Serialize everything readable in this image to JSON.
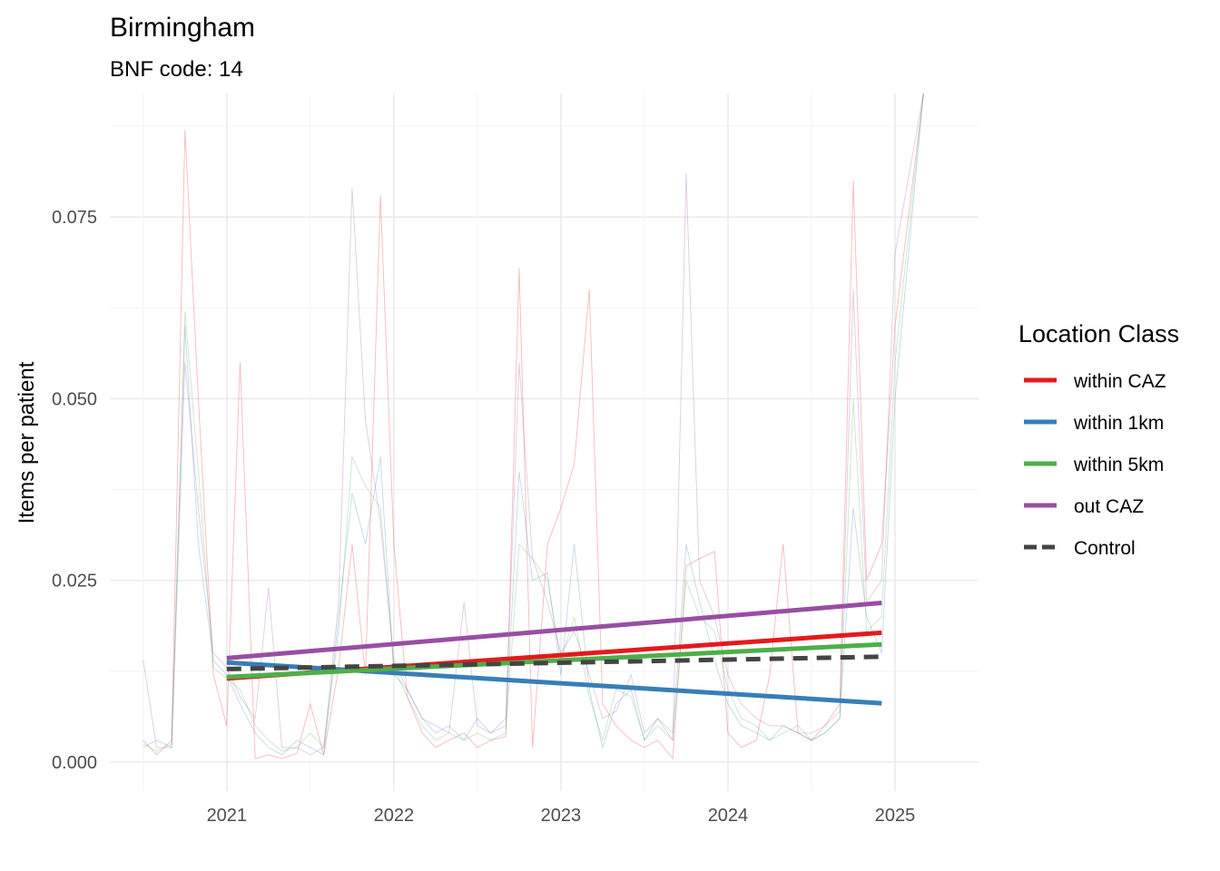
{
  "chart_data": {
    "type": "line",
    "title": "Birmingham",
    "subtitle": "BNF code: 14",
    "xlabel": "",
    "ylabel": "Items per patient",
    "xlim": [
      2020.3,
      2025.5
    ],
    "ylim": [
      -0.004,
      0.092
    ],
    "x_ticks": [
      2021,
      2022,
      2023,
      2024,
      2025
    ],
    "x_tick_labels": [
      "2021",
      "2022",
      "2023",
      "2024",
      "2025"
    ],
    "y_ticks": [
      0.0,
      0.025,
      0.05,
      0.075
    ],
    "y_tick_labels": [
      "0.000",
      "0.025",
      "0.050",
      "0.075"
    ],
    "grid": true,
    "legend": {
      "title": "Location Class",
      "placement": "right",
      "entries": [
        {
          "label": "within CAZ",
          "color": "#E41A1C",
          "dashed": false
        },
        {
          "label": "within 1km",
          "color": "#377EB8",
          "dashed": false
        },
        {
          "label": "within 5km",
          "color": "#4DAF4A",
          "dashed": false
        },
        {
          "label": "out CAZ",
          "color": "#984EA3",
          "dashed": false
        },
        {
          "label": "Control",
          "color": "#444444",
          "dashed": true
        }
      ]
    },
    "trend_lines": [
      {
        "name": "within CAZ",
        "color": "#E41A1C",
        "x": [
          2021.0,
          2024.92
        ],
        "y": [
          0.0115,
          0.0178
        ]
      },
      {
        "name": "within 1km",
        "color": "#377EB8",
        "x": [
          2021.0,
          2024.92
        ],
        "y": [
          0.0137,
          0.0081
        ]
      },
      {
        "name": "within 5km",
        "color": "#4DAF4A",
        "x": [
          2021.0,
          2024.92
        ],
        "y": [
          0.0117,
          0.0162
        ]
      },
      {
        "name": "out CAZ",
        "color": "#984EA3",
        "x": [
          2021.0,
          2024.92
        ],
        "y": [
          0.0143,
          0.0219
        ]
      },
      {
        "name": "Control",
        "color": "#444444",
        "dashed": true,
        "x": [
          2021.0,
          2024.92
        ],
        "y": [
          0.0128,
          0.0145
        ]
      }
    ],
    "raw_series": [
      {
        "name": "within CAZ",
        "color": "#E41A1C",
        "x": [
          2020.5,
          2020.58,
          2020.67,
          2020.75,
          2020.83,
          2020.92,
          2021.0,
          2021.08,
          2021.17,
          2021.25,
          2021.33,
          2021.42,
          2021.5,
          2021.58,
          2021.67,
          2021.75,
          2021.83,
          2021.92,
          2022.0,
          2022.08,
          2022.17,
          2022.25,
          2022.33,
          2022.42,
          2022.5,
          2022.58,
          2022.67,
          2022.75,
          2022.83,
          2022.92,
          2023.0,
          2023.08,
          2023.17,
          2023.25,
          2023.33,
          2023.42,
          2023.5,
          2023.58,
          2023.67,
          2023.75,
          2023.83,
          2023.92,
          2024.0,
          2024.08,
          2024.17,
          2024.25,
          2024.33,
          2024.42,
          2024.5,
          2024.58,
          2024.67,
          2024.75,
          2024.83,
          2024.92,
          2025.0,
          2025.17
        ],
        "y": [
          0.003,
          0.001,
          0.003,
          0.087,
          0.05,
          0.012,
          0.005,
          0.055,
          0.0005,
          0.001,
          0.0005,
          0.0012,
          0.008,
          0.001,
          0.013,
          0.03,
          0.012,
          0.078,
          0.03,
          0.009,
          0.004,
          0.002,
          0.003,
          0.004,
          0.002,
          0.003,
          0.0035,
          0.068,
          0.002,
          0.03,
          0.035,
          0.041,
          0.065,
          0.008,
          0.005,
          0.003,
          0.002,
          0.003,
          0.0005,
          0.027,
          0.028,
          0.029,
          0.004,
          0.002,
          0.003,
          0.012,
          0.03,
          0.004,
          0.003,
          0.005,
          0.008,
          0.08,
          0.025,
          0.03,
          0.06,
          0.092
        ]
      },
      {
        "name": "within 1km",
        "color": "#377EB8",
        "x": [
          2020.5,
          2020.58,
          2020.67,
          2020.75,
          2020.83,
          2020.92,
          2021.0,
          2021.08,
          2021.17,
          2021.25,
          2021.33,
          2021.42,
          2021.5,
          2021.58,
          2021.67,
          2021.75,
          2021.83,
          2021.92,
          2022.0,
          2022.08,
          2022.17,
          2022.25,
          2022.33,
          2022.42,
          2022.5,
          2022.58,
          2022.67,
          2022.75,
          2022.83,
          2022.92,
          2023.0,
          2023.08,
          2023.17,
          2023.25,
          2023.33,
          2023.42,
          2023.5,
          2023.58,
          2023.67,
          2023.75,
          2023.83,
          2023.92,
          2024.0,
          2024.08,
          2024.17,
          2024.25,
          2024.33,
          2024.42,
          2024.5,
          2024.58,
          2024.67,
          2024.75,
          2024.83,
          2024.92,
          2025.0,
          2025.17
        ],
        "y": [
          0.002,
          0.003,
          0.002,
          0.06,
          0.03,
          0.014,
          0.012,
          0.008,
          0.004,
          0.002,
          0.001,
          0.003,
          0.002,
          0.001,
          0.02,
          0.037,
          0.03,
          0.042,
          0.012,
          0.01,
          0.006,
          0.004,
          0.005,
          0.003,
          0.006,
          0.004,
          0.005,
          0.04,
          0.025,
          0.026,
          0.012,
          0.03,
          0.01,
          0.002,
          0.008,
          0.01,
          0.003,
          0.006,
          0.004,
          0.03,
          0.022,
          0.014,
          0.008,
          0.005,
          0.004,
          0.003,
          0.005,
          0.004,
          0.003,
          0.004,
          0.006,
          0.035,
          0.02,
          0.015,
          0.05,
          0.092
        ]
      },
      {
        "name": "within 5km",
        "color": "#4DAF4A",
        "x": [
          2020.5,
          2020.58,
          2020.67,
          2020.75,
          2020.83,
          2020.92,
          2021.0,
          2021.08,
          2021.17,
          2021.25,
          2021.33,
          2021.42,
          2021.5,
          2021.58,
          2021.67,
          2021.75,
          2021.83,
          2021.92,
          2022.0,
          2022.08,
          2022.17,
          2022.25,
          2022.33,
          2022.42,
          2022.5,
          2022.58,
          2022.67,
          2022.75,
          2022.83,
          2022.92,
          2023.0,
          2023.08,
          2023.17,
          2023.25,
          2023.33,
          2023.42,
          2023.5,
          2023.58,
          2023.67,
          2023.75,
          2023.83,
          2023.92,
          2024.0,
          2024.08,
          2024.17,
          2024.25,
          2024.33,
          2024.42,
          2024.5,
          2024.58,
          2024.67,
          2024.75,
          2024.83,
          2024.92,
          2025.0,
          2025.17
        ],
        "y": [
          0.0025,
          0.0015,
          0.0025,
          0.062,
          0.04,
          0.013,
          0.0115,
          0.01,
          0.005,
          0.003,
          0.0015,
          0.002,
          0.004,
          0.002,
          0.018,
          0.042,
          0.038,
          0.035,
          0.013,
          0.009,
          0.005,
          0.003,
          0.004,
          0.003,
          0.004,
          0.003,
          0.004,
          0.03,
          0.028,
          0.025,
          0.014,
          0.02,
          0.009,
          0.003,
          0.01,
          0.009,
          0.003,
          0.005,
          0.003,
          0.025,
          0.02,
          0.018,
          0.01,
          0.006,
          0.005,
          0.003,
          0.004,
          0.005,
          0.003,
          0.004,
          0.006,
          0.05,
          0.018,
          0.02,
          0.055,
          0.092
        ]
      },
      {
        "name": "out CAZ",
        "color": "#984EA3",
        "x": [
          2020.5,
          2020.58,
          2020.67,
          2020.75,
          2020.83,
          2020.92,
          2021.0,
          2021.08,
          2021.17,
          2021.25,
          2021.33,
          2021.42,
          2021.5,
          2021.58,
          2021.67,
          2021.75,
          2021.83,
          2021.92,
          2022.0,
          2022.08,
          2022.17,
          2022.25,
          2022.33,
          2022.42,
          2022.5,
          2022.58,
          2022.67,
          2022.75,
          2022.83,
          2022.92,
          2023.0,
          2023.08,
          2023.17,
          2023.25,
          2023.33,
          2023.42,
          2023.5,
          2023.58,
          2023.67,
          2023.75,
          2023.83,
          2023.92,
          2024.0,
          2024.08,
          2024.17,
          2024.25,
          2024.33,
          2024.42,
          2024.5,
          2024.58,
          2024.67,
          2024.75,
          2024.83,
          2024.92,
          2025.0,
          2025.17
        ],
        "y": [
          0.014,
          0.002,
          0.002,
          0.055,
          0.035,
          0.015,
          0.013,
          0.009,
          0.006,
          0.024,
          0.002,
          0.002,
          0.001,
          0.002,
          0.022,
          0.079,
          0.047,
          0.033,
          0.014,
          0.01,
          0.006,
          0.005,
          0.004,
          0.022,
          0.005,
          0.004,
          0.006,
          0.055,
          0.028,
          0.022,
          0.015,
          0.018,
          0.012,
          0.006,
          0.007,
          0.012,
          0.004,
          0.006,
          0.003,
          0.081,
          0.025,
          0.02,
          0.012,
          0.008,
          0.006,
          0.005,
          0.005,
          0.004,
          0.004,
          0.005,
          0.007,
          0.065,
          0.022,
          0.025,
          0.07,
          0.092
        ]
      }
    ]
  }
}
